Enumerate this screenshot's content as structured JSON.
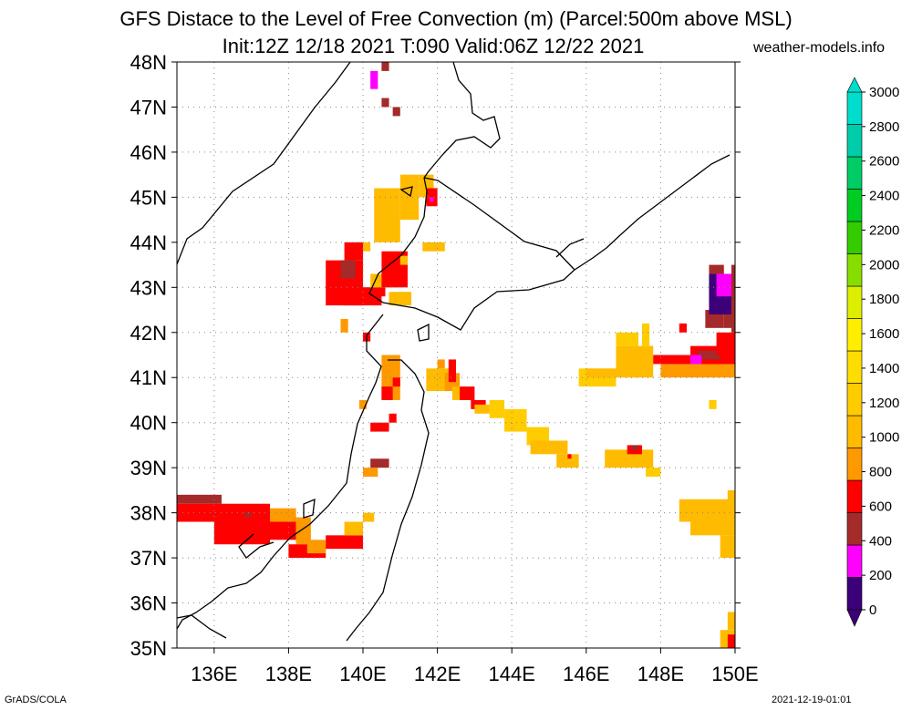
{
  "title_line1": "GFS Distace to the Level of Free Convection (m) (Parcel:500m above MSL)",
  "title_line2": "Init:12Z 12/18 2021 T:090 Valid:06Z 12/22 2021",
  "site": "weather-models.info",
  "footer_left": "GrADS/COLA",
  "footer_right": "2021-12-19-01:01",
  "map": {
    "lat_labels": [
      "48N",
      "47N",
      "46N",
      "45N",
      "44N",
      "43N",
      "42N",
      "41N",
      "40N",
      "39N",
      "38N",
      "37N",
      "36N",
      "35N"
    ],
    "lon_labels": [
      "136E",
      "138E",
      "140E",
      "142E",
      "144E",
      "146E",
      "148E",
      "150E"
    ],
    "lat_range": [
      35,
      48
    ],
    "lon_range": [
      135,
      150
    ],
    "grid": "dotted",
    "gridline_lons": [
      136,
      138,
      140,
      142,
      144,
      146,
      148
    ],
    "gridline_lats": [
      36,
      37,
      38,
      39,
      40,
      41,
      42,
      43,
      44,
      45,
      46,
      47
    ]
  },
  "colorbar": {
    "labels": [
      "3000",
      "2800",
      "2600",
      "2400",
      "2200",
      "2000",
      "1800",
      "1600",
      "1400",
      "1200",
      "1000",
      "800",
      "600",
      "400",
      "200",
      "0"
    ],
    "colors_bottom_to_top": [
      "#3c0078",
      "#ff00ff",
      "#a52a2a",
      "#ff0000",
      "#ff9900",
      "#ffbb00",
      "#ffcc00",
      "#ffdd00",
      "#ffee00",
      "#ddee00",
      "#88dd00",
      "#33cc00",
      "#00cc22",
      "#00cc66",
      "#00ccaa",
      "#00ddcc"
    ],
    "under_color": "#3c0078",
    "over_color": "#00ddcc"
  },
  "cells": [
    {
      "lon": 135.0,
      "lat": 38.2,
      "lon2": 136.2,
      "lat2": 38.4,
      "color": "#a52a2a"
    },
    {
      "lon": 135.0,
      "lat": 37.8,
      "lon2": 137.5,
      "lat2": 38.2,
      "color": "#ff0000"
    },
    {
      "lon": 136.0,
      "lat": 37.3,
      "lon2": 137.5,
      "lat2": 37.8,
      "color": "#ff0000"
    },
    {
      "lon": 136.8,
      "lat": 37.9,
      "lon2": 137.0,
      "lat2": 38.0,
      "color": "#a52a2a"
    },
    {
      "lon": 137.5,
      "lat": 37.4,
      "lon2": 138.2,
      "lat2": 38.0,
      "color": "#ff0000"
    },
    {
      "lon": 137.5,
      "lat": 37.8,
      "lon2": 138.2,
      "lat2": 38.1,
      "color": "#ff9900"
    },
    {
      "lon": 138.2,
      "lat": 37.3,
      "lon2": 138.6,
      "lat2": 37.9,
      "color": "#ff9900"
    },
    {
      "lon": 138.0,
      "lat": 37.0,
      "lon2": 139.0,
      "lat2": 37.3,
      "color": "#ff0000"
    },
    {
      "lon": 138.5,
      "lat": 37.1,
      "lon2": 139.0,
      "lat2": 37.4,
      "color": "#ff9900"
    },
    {
      "lon": 139.0,
      "lat": 37.2,
      "lon2": 140.0,
      "lat2": 37.5,
      "color": "#ff0000"
    },
    {
      "lon": 139.5,
      "lat": 37.5,
      "lon2": 140.0,
      "lat2": 37.8,
      "color": "#ffbb00"
    },
    {
      "lon": 140.0,
      "lat": 37.8,
      "lon2": 140.3,
      "lat2": 38.0,
      "color": "#ffbb00"
    },
    {
      "lon": 140.0,
      "lat": 38.8,
      "lon2": 140.4,
      "lat2": 39.0,
      "color": "#ff9900"
    },
    {
      "lon": 140.2,
      "lat": 39.0,
      "lon2": 140.7,
      "lat2": 39.2,
      "color": "#a52a2a"
    },
    {
      "lon": 140.2,
      "lat": 39.8,
      "lon2": 140.7,
      "lat2": 40.0,
      "color": "#ff0000"
    },
    {
      "lon": 140.7,
      "lat": 40.0,
      "lon2": 140.9,
      "lat2": 40.2,
      "color": "#ff0000"
    },
    {
      "lon": 140.5,
      "lat": 40.5,
      "lon2": 141.0,
      "lat2": 41.5,
      "color": "#ff9900"
    },
    {
      "lon": 140.5,
      "lat": 40.5,
      "lon2": 140.8,
      "lat2": 40.8,
      "color": "#ff0000"
    },
    {
      "lon": 140.8,
      "lat": 40.8,
      "lon2": 141.0,
      "lat2": 41.0,
      "color": "#ff0000"
    },
    {
      "lon": 139.9,
      "lat": 40.3,
      "lon2": 140.1,
      "lat2": 40.5,
      "color": "#ff9900"
    },
    {
      "lon": 139.8,
      "lat": 42.8,
      "lon2": 140.6,
      "lat2": 43.0,
      "color": "#ff0000"
    },
    {
      "lon": 139.0,
      "lat": 42.6,
      "lon2": 140.0,
      "lat2": 43.6,
      "color": "#ff0000"
    },
    {
      "lon": 139.5,
      "lat": 42.6,
      "lon2": 140.5,
      "lat2": 43.0,
      "color": "#ff0000"
    },
    {
      "lon": 139.4,
      "lat": 43.2,
      "lon2": 139.8,
      "lat2": 43.6,
      "color": "#a52a2a"
    },
    {
      "lon": 139.5,
      "lat": 43.6,
      "lon2": 140.0,
      "lat2": 44.0,
      "color": "#ff0000"
    },
    {
      "lon": 140.0,
      "lat": 43.8,
      "lon2": 140.2,
      "lat2": 44.0,
      "color": "#ffbb00"
    },
    {
      "lon": 140.2,
      "lat": 43.0,
      "lon2": 141.0,
      "lat2": 43.3,
      "color": "#ffbb00"
    },
    {
      "lon": 140.5,
      "lat": 43.0,
      "lon2": 141.2,
      "lat2": 43.8,
      "color": "#ff0000"
    },
    {
      "lon": 141.0,
      "lat": 43.5,
      "lon2": 141.2,
      "lat2": 43.7,
      "color": "#ffbb00"
    },
    {
      "lon": 140.7,
      "lat": 42.6,
      "lon2": 141.3,
      "lat2": 42.9,
      "color": "#ffbb00"
    },
    {
      "lon": 139.4,
      "lat": 42.0,
      "lon2": 139.6,
      "lat2": 42.3,
      "color": "#ff9900"
    },
    {
      "lon": 140.0,
      "lat": 41.8,
      "lon2": 140.2,
      "lat2": 42.0,
      "color": "#ff0000"
    },
    {
      "lon": 140.3,
      "lat": 44.0,
      "lon2": 141.0,
      "lat2": 45.2,
      "color": "#ffbb00"
    },
    {
      "lon": 141.0,
      "lat": 44.5,
      "lon2": 141.5,
      "lat2": 45.5,
      "color": "#ffbb00"
    },
    {
      "lon": 141.5,
      "lat": 45.0,
      "lon2": 141.9,
      "lat2": 45.5,
      "color": "#ffbb00"
    },
    {
      "lon": 141.7,
      "lat": 44.8,
      "lon2": 142.0,
      "lat2": 45.2,
      "color": "#ff0000"
    },
    {
      "lon": 141.8,
      "lat": 44.9,
      "lon2": 141.9,
      "lat2": 45.0,
      "color": "#ff00ff"
    },
    {
      "lon": 141.6,
      "lat": 43.8,
      "lon2": 142.2,
      "lat2": 44.0,
      "color": "#ffbb00"
    },
    {
      "lon": 140.2,
      "lat": 47.4,
      "lon2": 140.4,
      "lat2": 47.8,
      "color": "#ff00ff"
    },
    {
      "lon": 140.5,
      "lat": 47.8,
      "lon2": 140.7,
      "lat2": 48.0,
      "color": "#a52a2a"
    },
    {
      "lon": 140.5,
      "lat": 47.0,
      "lon2": 140.7,
      "lat2": 47.2,
      "color": "#a52a2a"
    },
    {
      "lon": 140.8,
      "lat": 46.8,
      "lon2": 141.0,
      "lat2": 47.0,
      "color": "#a52a2a"
    },
    {
      "lon": 142.0,
      "lat": 41.2,
      "lon2": 142.2,
      "lat2": 41.4,
      "color": "#ff9900"
    },
    {
      "lon": 141.7,
      "lat": 40.7,
      "lon2": 142.4,
      "lat2": 41.2,
      "color": "#ffbb00"
    },
    {
      "lon": 142.2,
      "lat": 40.7,
      "lon2": 142.6,
      "lat2": 41.1,
      "color": "#ff9900"
    },
    {
      "lon": 142.3,
      "lat": 40.9,
      "lon2": 142.5,
      "lat2": 41.4,
      "color": "#ff0000"
    },
    {
      "lon": 142.4,
      "lat": 40.5,
      "lon2": 142.8,
      "lat2": 40.8,
      "color": "#ffbb00"
    },
    {
      "lon": 142.6,
      "lat": 40.5,
      "lon2": 143.0,
      "lat2": 40.8,
      "color": "#ff0000"
    },
    {
      "lon": 142.9,
      "lat": 40.3,
      "lon2": 143.3,
      "lat2": 40.5,
      "color": "#ff0000"
    },
    {
      "lon": 143.0,
      "lat": 40.2,
      "lon2": 143.4,
      "lat2": 40.4,
      "color": "#ffbb00"
    },
    {
      "lon": 143.4,
      "lat": 40.1,
      "lon2": 143.8,
      "lat2": 40.5,
      "color": "#ffcc00"
    },
    {
      "lon": 143.8,
      "lat": 39.8,
      "lon2": 144.4,
      "lat2": 40.3,
      "color": "#ffcc00"
    },
    {
      "lon": 144.4,
      "lat": 39.5,
      "lon2": 145.0,
      "lat2": 39.9,
      "color": "#ffcc00"
    },
    {
      "lon": 144.5,
      "lat": 39.3,
      "lon2": 145.5,
      "lat2": 39.6,
      "color": "#ffbb00"
    },
    {
      "lon": 145.2,
      "lat": 39.0,
      "lon2": 145.8,
      "lat2": 39.3,
      "color": "#ffbb00"
    },
    {
      "lon": 145.5,
      "lat": 39.2,
      "lon2": 145.6,
      "lat2": 39.3,
      "color": "#ff0000"
    },
    {
      "lon": 146.5,
      "lat": 39.0,
      "lon2": 147.8,
      "lat2": 39.4,
      "color": "#ffbb00"
    },
    {
      "lon": 147.1,
      "lat": 39.3,
      "lon2": 147.5,
      "lat2": 39.5,
      "color": "#ff0000"
    },
    {
      "lon": 147.2,
      "lat": 39.4,
      "lon2": 147.4,
      "lat2": 39.5,
      "color": "#a52a2a"
    },
    {
      "lon": 147.6,
      "lat": 38.8,
      "lon2": 148.0,
      "lat2": 39.0,
      "color": "#ffcc00"
    },
    {
      "lon": 146.8,
      "lat": 41.0,
      "lon2": 147.8,
      "lat2": 41.7,
      "color": "#ffbb00"
    },
    {
      "lon": 146.8,
      "lat": 41.7,
      "lon2": 147.4,
      "lat2": 42.0,
      "color": "#ffcc00"
    },
    {
      "lon": 147.5,
      "lat": 41.7,
      "lon2": 147.7,
      "lat2": 42.2,
      "color": "#ffcc00"
    },
    {
      "lon": 145.8,
      "lat": 40.8,
      "lon2": 146.8,
      "lat2": 41.2,
      "color": "#ffcc00"
    },
    {
      "lon": 146.0,
      "lat": 41.0,
      "lon2": 146.8,
      "lat2": 41.2,
      "color": "#ffbb00"
    },
    {
      "lon": 148.0,
      "lat": 41.0,
      "lon2": 150.0,
      "lat2": 41.5,
      "color": "#ff9900"
    },
    {
      "lon": 147.8,
      "lat": 41.3,
      "lon2": 150.0,
      "lat2": 41.5,
      "color": "#ff0000"
    },
    {
      "lon": 148.8,
      "lat": 41.3,
      "lon2": 150.0,
      "lat2": 41.7,
      "color": "#ff0000"
    },
    {
      "lon": 149.0,
      "lat": 41.4,
      "lon2": 149.6,
      "lat2": 41.6,
      "color": "#a52a2a"
    },
    {
      "lon": 148.8,
      "lat": 41.3,
      "lon2": 149.1,
      "lat2": 41.5,
      "color": "#ff00ff"
    },
    {
      "lon": 149.5,
      "lat": 41.5,
      "lon2": 150.0,
      "lat2": 42.0,
      "color": "#ff0000"
    },
    {
      "lon": 148.5,
      "lat": 42.0,
      "lon2": 148.7,
      "lat2": 42.2,
      "color": "#ff0000"
    },
    {
      "lon": 149.2,
      "lat": 42.1,
      "lon2": 149.7,
      "lat2": 42.5,
      "color": "#a52a2a"
    },
    {
      "lon": 149.7,
      "lat": 42.1,
      "lon2": 150.0,
      "lat2": 42.5,
      "color": "#a52a2a"
    },
    {
      "lon": 149.3,
      "lat": 42.4,
      "lon2": 150.0,
      "lat2": 43.3,
      "color": "#3c0078"
    },
    {
      "lon": 149.5,
      "lat": 42.8,
      "lon2": 150.0,
      "lat2": 43.3,
      "color": "#ff00ff"
    },
    {
      "lon": 149.3,
      "lat": 43.3,
      "lon2": 149.7,
      "lat2": 43.5,
      "color": "#a52a2a"
    },
    {
      "lon": 149.9,
      "lat": 42.0,
      "lon2": 150.0,
      "lat2": 43.5,
      "color": "#a52a2a"
    },
    {
      "lon": 149.3,
      "lat": 40.3,
      "lon2": 149.5,
      "lat2": 40.5,
      "color": "#ffcc00"
    },
    {
      "lon": 148.5,
      "lat": 37.8,
      "lon2": 150.0,
      "lat2": 38.3,
      "color": "#ffbb00"
    },
    {
      "lon": 148.8,
      "lat": 37.5,
      "lon2": 150.0,
      "lat2": 37.9,
      "color": "#ffbb00"
    },
    {
      "lon": 149.6,
      "lat": 37.0,
      "lon2": 150.0,
      "lat2": 37.5,
      "color": "#ffbb00"
    },
    {
      "lon": 149.8,
      "lat": 38.0,
      "lon2": 150.0,
      "lat2": 38.5,
      "color": "#ffbb00"
    },
    {
      "lon": 149.6,
      "lat": 34.8,
      "lon2": 150.0,
      "lat2": 35.4,
      "color": "#ffbb00"
    },
    {
      "lon": 149.8,
      "lat": 35.4,
      "lon2": 150.0,
      "lat2": 35.8,
      "color": "#ffbb00"
    },
    {
      "lon": 149.8,
      "lat": 35.0,
      "lon2": 150.0,
      "lat2": 35.3,
      "color": "#ff0000"
    }
  ]
}
